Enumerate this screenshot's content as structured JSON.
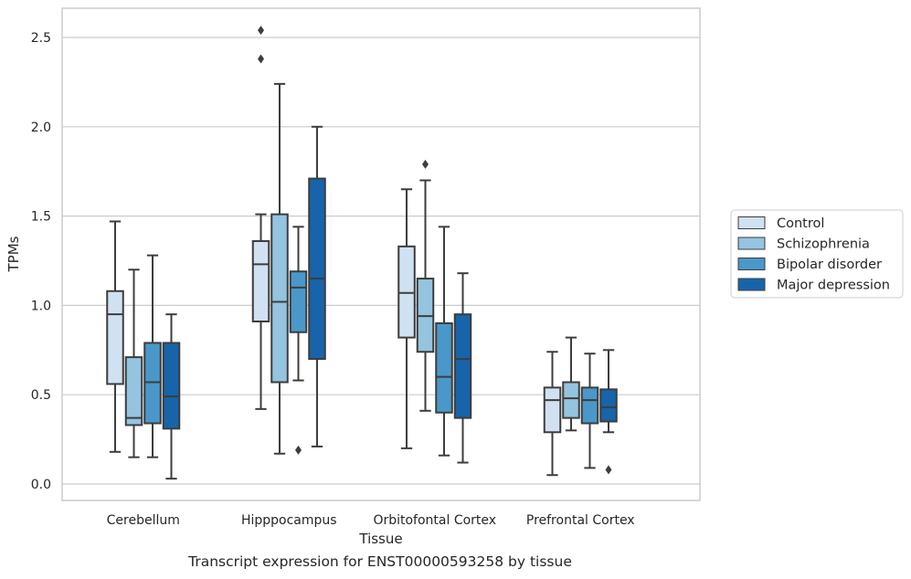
{
  "caption": "Transcript expression for ENST00000593258 by tissue",
  "chart_data": {
    "type": "boxplot",
    "xlabel": "Tissue",
    "ylabel": "TPMs",
    "ylim": [
      -0.09,
      2.66
    ],
    "yticks": [
      0.0,
      0.5,
      1.0,
      1.5,
      2.0,
      2.5
    ],
    "ytick_labels": [
      "0.0",
      "0.5",
      "1.0",
      "1.5",
      "2.0",
      "2.5"
    ],
    "grid": "horizontal",
    "legend_position": "right-center",
    "categories": [
      "Cerebellum",
      "Hipppocampus",
      "Orbitofontal Cortex",
      "Prefrontal Cortex"
    ],
    "series": [
      {
        "name": "Control",
        "color": "#d0e1f2",
        "boxes": [
          {
            "whisker_low": 0.18,
            "q1": 0.56,
            "median": 0.95,
            "q3": 1.08,
            "whisker_high": 1.47,
            "outliers": []
          },
          {
            "whisker_low": 0.42,
            "q1": 0.91,
            "median": 1.23,
            "q3": 1.36,
            "whisker_high": 1.51,
            "outliers": [
              2.38,
              2.54
            ]
          },
          {
            "whisker_low": 0.2,
            "q1": 0.82,
            "median": 1.07,
            "q3": 1.33,
            "whisker_high": 1.65,
            "outliers": []
          },
          {
            "whisker_low": 0.05,
            "q1": 0.29,
            "median": 0.47,
            "q3": 0.54,
            "whisker_high": 0.74,
            "outliers": []
          }
        ]
      },
      {
        "name": "Schizophrenia",
        "color": "#94c4df",
        "boxes": [
          {
            "whisker_low": 0.15,
            "q1": 0.33,
            "median": 0.37,
            "q3": 0.71,
            "whisker_high": 1.2,
            "outliers": []
          },
          {
            "whisker_low": 0.17,
            "q1": 0.57,
            "median": 1.02,
            "q3": 1.51,
            "whisker_high": 2.24,
            "outliers": []
          },
          {
            "whisker_low": 0.41,
            "q1": 0.74,
            "median": 0.94,
            "q3": 1.15,
            "whisker_high": 1.7,
            "outliers": [
              1.79
            ]
          },
          {
            "whisker_low": 0.3,
            "q1": 0.37,
            "median": 0.48,
            "q3": 0.57,
            "whisker_high": 0.82,
            "outliers": []
          }
        ]
      },
      {
        "name": "Bipolar disorder",
        "color": "#4a98c9",
        "boxes": [
          {
            "whisker_low": 0.15,
            "q1": 0.34,
            "median": 0.57,
            "q3": 0.79,
            "whisker_high": 1.28,
            "outliers": []
          },
          {
            "whisker_low": 0.58,
            "q1": 0.85,
            "median": 1.1,
            "q3": 1.19,
            "whisker_high": 1.44,
            "outliers": [
              0.19
            ]
          },
          {
            "whisker_low": 0.16,
            "q1": 0.4,
            "median": 0.6,
            "q3": 0.9,
            "whisker_high": 1.44,
            "outliers": []
          },
          {
            "whisker_low": 0.09,
            "q1": 0.34,
            "median": 0.47,
            "q3": 0.54,
            "whisker_high": 0.73,
            "outliers": []
          }
        ]
      },
      {
        "name": "Major depression",
        "color": "#1764ab",
        "boxes": [
          {
            "whisker_low": 0.03,
            "q1": 0.31,
            "median": 0.49,
            "q3": 0.79,
            "whisker_high": 0.95,
            "outliers": []
          },
          {
            "whisker_low": 0.21,
            "q1": 0.7,
            "median": 1.15,
            "q3": 1.71,
            "whisker_high": 2.0,
            "outliers": []
          },
          {
            "whisker_low": 0.12,
            "q1": 0.37,
            "median": 0.7,
            "q3": 0.95,
            "whisker_high": 1.18,
            "outliers": []
          },
          {
            "whisker_low": 0.29,
            "q1": 0.35,
            "median": 0.43,
            "q3": 0.53,
            "whisker_high": 0.75,
            "outliers": [
              0.08
            ]
          }
        ]
      }
    ]
  }
}
